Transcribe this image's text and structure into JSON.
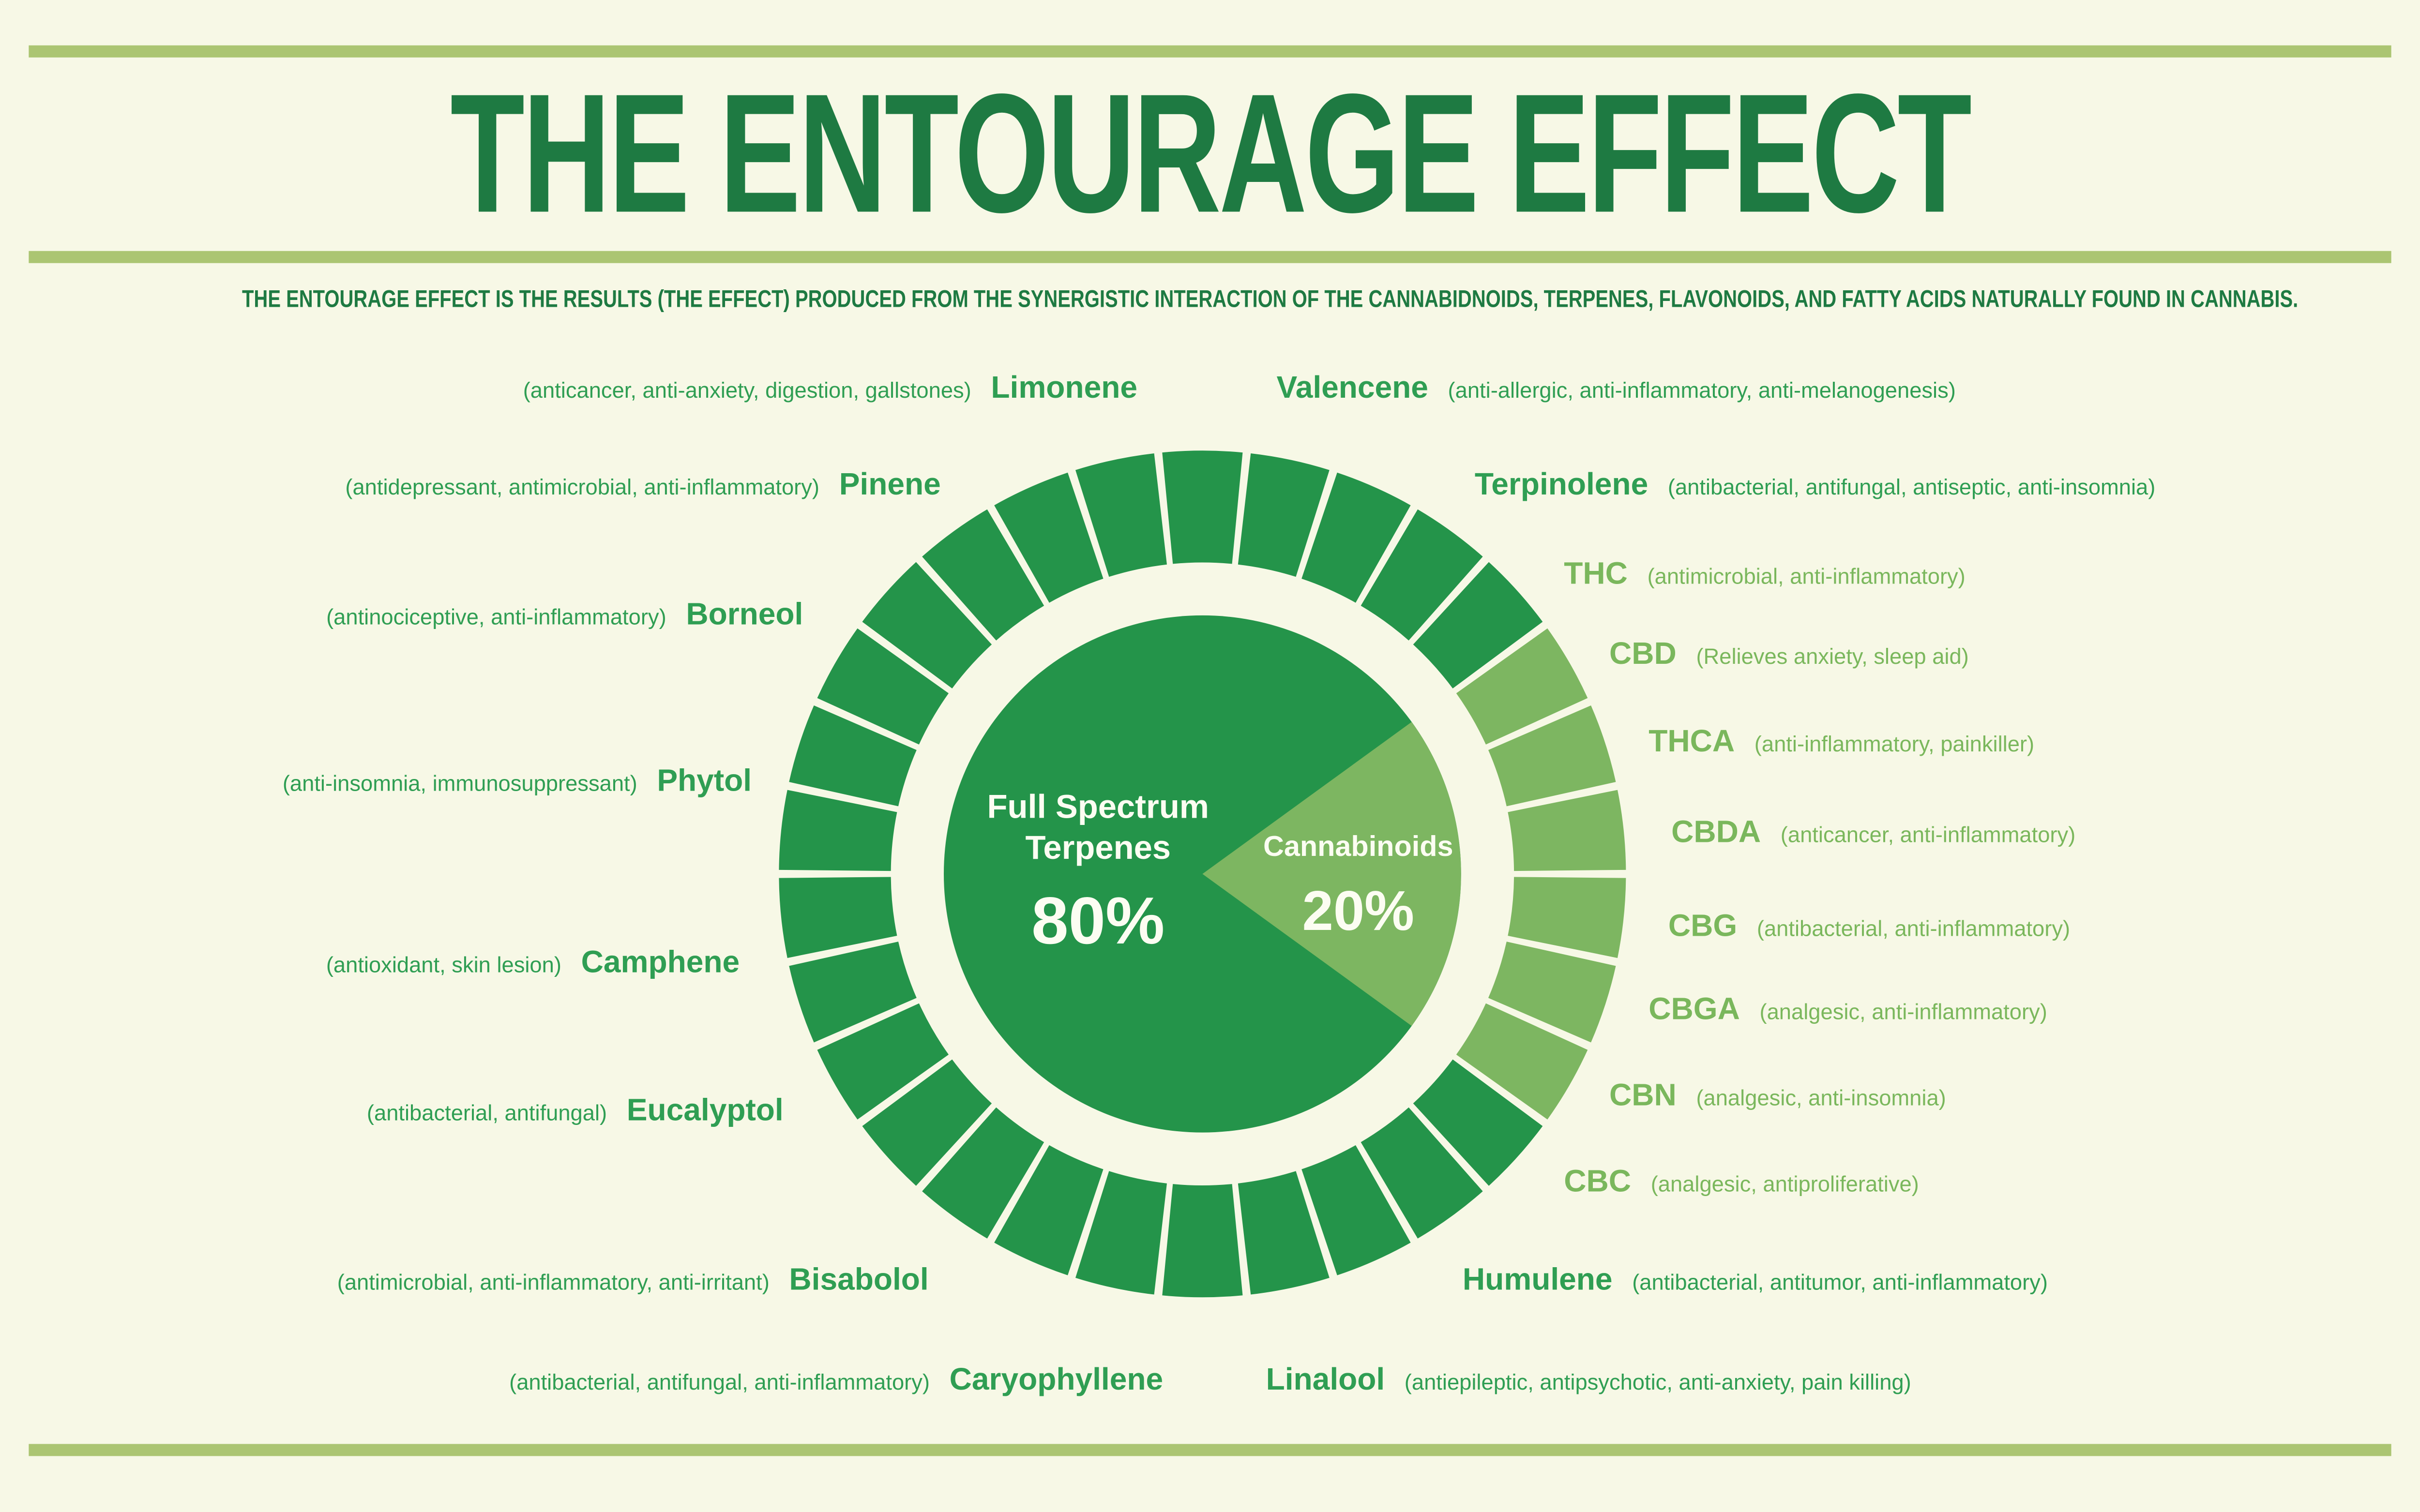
{
  "title": "THE ENTOURAGE EFFECT",
  "subtitle": "THE ENTOURAGE EFFECT IS THE RESULTS (THE EFFECT) PRODUCED FROM THE SYNERGISTIC INTERACTION OF THE CANNABIDNOIDS, TERPENES, FLAVONOIDS, AND FATTY ACIDS NATURALLY FOUND IN CANNABIS.",
  "colors": {
    "background": "#f7f8e6",
    "accent_bar": "#abc572",
    "title": "#1e7a42",
    "terpene": "#2f9e53",
    "cannabinoid": "#7ab75c",
    "donut_dark": "#24944a",
    "donut_light": "#7db661",
    "center_text": "#fcfdf2"
  },
  "chart_data": {
    "type": "pie",
    "title": "",
    "categories": [
      "Full Spectrum Terpenes",
      "Cannabinoids"
    ],
    "values": [
      80,
      20
    ],
    "ring_segments": 30,
    "legend_position": "center",
    "slices": [
      {
        "label": "Full Spectrum Terpenes",
        "label_lines": [
          "Full Spectrum",
          "Terpenes"
        ],
        "value": 80,
        "pct_label": "80%",
        "color": "#24944a"
      },
      {
        "label": "Cannabinoids",
        "label_lines": [
          "Cannabinoids"
        ],
        "value": 20,
        "pct_label": "20%",
        "color": "#7db661"
      }
    ]
  },
  "rows_left": [
    {
      "name": "Limonene",
      "effects": "(anticancer, anti-anxiety, digestion, gallstones)",
      "type": "terpene"
    },
    {
      "name": "Pinene",
      "effects": "(antidepressant, antimicrobial, anti-inflammatory)",
      "type": "terpene"
    },
    {
      "name": "Borneol",
      "effects": "(antinociceptive, anti-inflammatory)",
      "type": "terpene"
    },
    {
      "name": "Phytol",
      "effects": "(anti-insomnia, immunosuppressant)",
      "type": "terpene"
    },
    {
      "name": "Camphene",
      "effects": "(antioxidant, skin lesion)",
      "type": "terpene"
    },
    {
      "name": "Eucalyptol",
      "effects": "(antibacterial, antifungal)",
      "type": "terpene"
    },
    {
      "name": "Bisabolol",
      "effects": "(antimicrobial, anti-inflammatory, anti-irritant)",
      "type": "terpene"
    },
    {
      "name": "Caryophyllene",
      "effects": "(antibacterial, antifungal, anti-inflammatory)",
      "type": "terpene"
    }
  ],
  "rows_right": [
    {
      "name": "Valencene",
      "effects": "(anti-allergic, anti-inflammatory, anti-melanogenesis)",
      "type": "terpene"
    },
    {
      "name": "Terpinolene",
      "effects": "(antibacterial, antifungal, antiseptic, anti-insomnia)",
      "type": "terpene"
    },
    {
      "name": "THC",
      "effects": "(antimicrobial, anti-inflammatory)",
      "type": "cannabinoid"
    },
    {
      "name": "CBD",
      "effects": "(Relieves anxiety, sleep aid)",
      "type": "cannabinoid"
    },
    {
      "name": "THCA",
      "effects": "(anti-inflammatory, painkiller)",
      "type": "cannabinoid"
    },
    {
      "name": "CBDA",
      "effects": "(anticancer, anti-inflammatory)",
      "type": "cannabinoid"
    },
    {
      "name": "CBG",
      "effects": "(antibacterial, anti-inflammatory)",
      "type": "cannabinoid"
    },
    {
      "name": "CBGA",
      "effects": "(analgesic, anti-inflammatory)",
      "type": "cannabinoid"
    },
    {
      "name": "CBN",
      "effects": "(analgesic, anti-insomnia)",
      "type": "cannabinoid"
    },
    {
      "name": "CBC",
      "effects": "(analgesic, antiproliferative)",
      "type": "cannabinoid"
    },
    {
      "name": "Humulene",
      "effects": "(antibacterial, antitumor, anti-inflammatory)",
      "type": "terpene"
    },
    {
      "name": "Linalool",
      "effects": "(antiepileptic, antipsychotic, anti-anxiety, pain killing)",
      "type": "terpene"
    }
  ]
}
